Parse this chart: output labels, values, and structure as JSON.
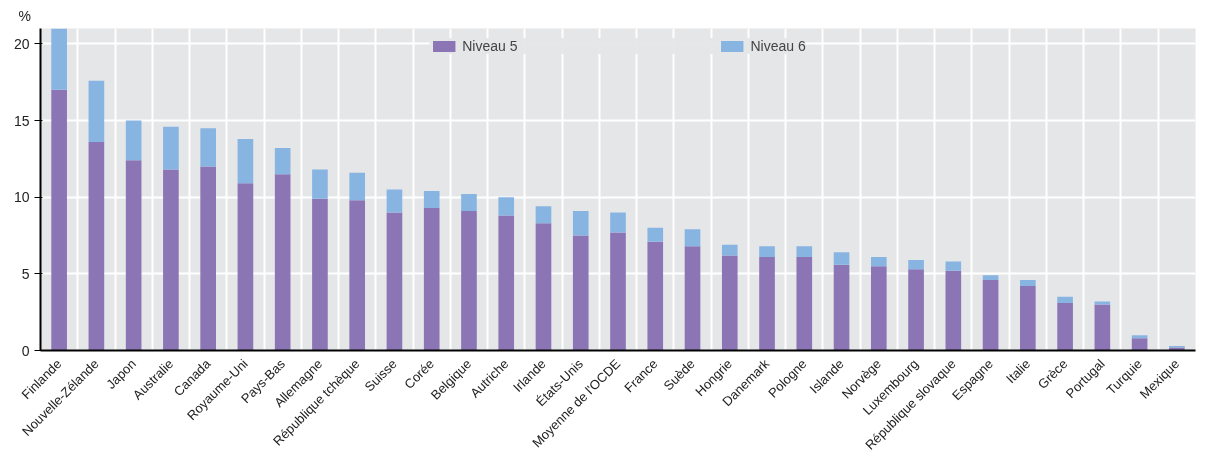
{
  "chart_data": {
    "type": "bar",
    "stacked": true,
    "ylabel": "%",
    "categories": [
      "Finlande",
      "Nouvelle-Zélande",
      "Japon",
      "Australie",
      "Canada",
      "Royaume-Uni",
      "Pays-Bas",
      "Allemagne",
      "République tchèque",
      "Suisse",
      "Corée",
      "Belgique",
      "Autriche",
      "Irlande",
      "États-Unis",
      "Moyenne de l'OCDE",
      "France",
      "Suède",
      "Hongrie",
      "Danemark",
      "Pologne",
      "Islande",
      "Norvège",
      "Luxembourg",
      "République slovaque",
      "Espagne",
      "Italie",
      "Grèce",
      "Portugal",
      "Turquie",
      "Mexique"
    ],
    "series": [
      {
        "name": "Niveau 5",
        "color": "#8b75b4",
        "values": [
          17.0,
          13.6,
          12.4,
          11.8,
          12.0,
          10.9,
          11.5,
          9.9,
          9.8,
          9.0,
          9.3,
          9.1,
          8.8,
          8.3,
          7.5,
          7.7,
          7.1,
          6.8,
          6.2,
          6.1,
          6.1,
          5.6,
          5.5,
          5.3,
          5.2,
          4.6,
          4.2,
          3.1,
          3.0,
          0.8,
          0.2
        ]
      },
      {
        "name": "Niveau 6",
        "color": "#88b4e2",
        "values": [
          4.0,
          4.0,
          2.6,
          2.8,
          2.5,
          2.9,
          1.7,
          1.9,
          1.8,
          1.5,
          1.1,
          1.1,
          1.2,
          1.1,
          1.6,
          1.3,
          0.9,
          1.1,
          0.7,
          0.7,
          0.7,
          0.8,
          0.6,
          0.6,
          0.6,
          0.3,
          0.4,
          0.4,
          0.2,
          0.2,
          0.1
        ]
      }
    ],
    "ylim": [
      0,
      21
    ],
    "yticks": [
      0,
      5,
      10,
      15,
      20
    ],
    "grid": true,
    "legend": "top"
  }
}
